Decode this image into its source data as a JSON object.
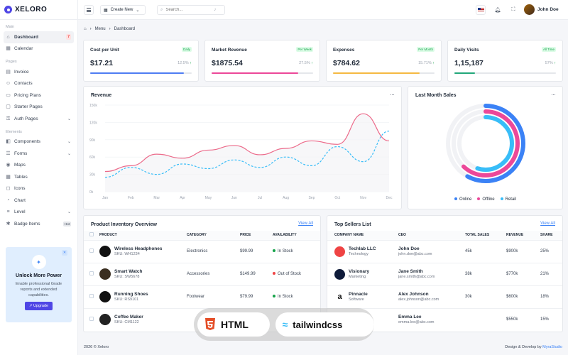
{
  "brand": {
    "name": "XELORO"
  },
  "sidebar": {
    "section_main": "Main",
    "section_pages": "Pages",
    "section_elements": "Elements",
    "main_items": [
      {
        "label": "Dashboard",
        "icon": "home-icon",
        "badge": "7"
      },
      {
        "label": "Calendar",
        "icon": "calendar-icon"
      }
    ],
    "page_items": [
      {
        "label": "Invoice",
        "icon": "invoice-icon"
      },
      {
        "label": "Contacts",
        "icon": "contacts-icon"
      },
      {
        "label": "Pricing Plans",
        "icon": "pricing-icon"
      },
      {
        "label": "Starter Pages",
        "icon": "page-icon"
      },
      {
        "label": "Auth Pages",
        "icon": "lock-icon"
      }
    ],
    "element_items": [
      {
        "label": "Components",
        "icon": "components-icon"
      },
      {
        "label": "Forms",
        "icon": "forms-icon"
      },
      {
        "label": "Maps",
        "icon": "map-icon"
      },
      {
        "label": "Tables",
        "icon": "table-icon"
      },
      {
        "label": "Icons",
        "icon": "icons-icon"
      },
      {
        "label": "Chart",
        "icon": "chart-icon"
      },
      {
        "label": "Level",
        "icon": "level-icon"
      },
      {
        "label": "Badge Items",
        "icon": "badge-icon",
        "badge": "Hot"
      }
    ],
    "promo": {
      "title": "Unlock More Power",
      "text": "Enable professional Grade reports and extended capabilities.",
      "button": "Upgrade"
    }
  },
  "topbar": {
    "create_label": "Create New",
    "search_placeholder": "Search...",
    "user_name": "John Doe"
  },
  "breadcrumb": {
    "items": [
      "Menu",
      "Dashboard"
    ]
  },
  "stats": [
    {
      "label": "Cost per Unit",
      "tag": "Daily",
      "value": "$17.21",
      "pct": "12.5%",
      "fill": 0.92,
      "color": "#4f7df3"
    },
    {
      "label": "Market Revenue",
      "tag": "Per Week",
      "value": "$1875.54",
      "pct": "27.5%",
      "fill": 0.85,
      "color": "#ec4899"
    },
    {
      "label": "Expenses",
      "tag": "Per Month",
      "value": "$784.62",
      "pct": "15.71%",
      "fill": 0.85,
      "color": "#f5b942"
    },
    {
      "label": "Daily Visits",
      "tag": "All Time",
      "value": "1,15,187",
      "pct": "57%",
      "fill": 0.2,
      "color": "#22a77a"
    }
  ],
  "revenue": {
    "title": "Revenue"
  },
  "last_month": {
    "title": "Last Month Sales",
    "legend": [
      "Online",
      "Offline",
      "Retail"
    ]
  },
  "colors": {
    "online": "#3b82f6",
    "offline": "#ec4899",
    "retail": "#38bdf8",
    "green": "#16a34a",
    "red": "#ef4444"
  },
  "chart_data": [
    {
      "type": "line",
      "title": "Revenue",
      "categories": [
        "Jan",
        "Feb",
        "Mar",
        "Apr",
        "May",
        "Jun",
        "Jul",
        "Aug",
        "Sep",
        "Oct",
        "Nov",
        "Dec"
      ],
      "y_ticks": [
        "150k",
        "120k",
        "90k",
        "60k",
        "30k",
        "0k"
      ],
      "ylim": [
        0,
        150
      ],
      "grid": true,
      "series": [
        {
          "values": [
            35,
            45,
            65,
            58,
            72,
            80,
            64,
            75,
            88,
            82,
            135,
            88
          ],
          "color": "#ec6a8a"
        },
        {
          "values": [
            25,
            42,
            30,
            48,
            40,
            55,
            42,
            60,
            45,
            78,
            52,
            105
          ],
          "color": "#38bdf8"
        }
      ]
    },
    {
      "type": "radialBar",
      "title": "Last Month Sales",
      "series": [
        {
          "name": "Online",
          "value": 0.58,
          "color": "#3b82f6"
        },
        {
          "name": "Offline",
          "value": 0.62,
          "color": "#ec4899"
        },
        {
          "name": "Retail",
          "value": 0.55,
          "color": "#38bdf8"
        }
      ]
    }
  ],
  "inventory": {
    "title": "Product Inventory Overview",
    "view_all": "View All",
    "columns": [
      "PRODUCT",
      "CATEGORY",
      "PRICE",
      "AVAILABILITY"
    ],
    "rows": [
      {
        "name": "Wireless Headphones",
        "sku": "SKU: WH1234",
        "category": "Electronics",
        "price": "$99.99",
        "status": "In Stock"
      },
      {
        "name": "Smart Watch",
        "sku": "SKU: SW5678",
        "category": "Accessories",
        "price": "$149.99",
        "status": "Out of Stock"
      },
      {
        "name": "Running Shoes",
        "sku": "SKU: RS9101",
        "category": "Footwear",
        "price": "$79.99",
        "status": "In Stock"
      },
      {
        "name": "Coffee Maker",
        "sku": "SKU: CM1122",
        "category": "",
        "price": "",
        "status": ""
      }
    ]
  },
  "sellers": {
    "title": "Top Sellers List",
    "view_all": "View All",
    "columns": [
      "COMPANY NAME",
      "CEO",
      "TOTAL SALES",
      "REVENUE",
      "SHARE"
    ],
    "rows": [
      {
        "company": "Techlab LLC",
        "industry": "Technology",
        "ceo": "John Doe",
        "email": "john.doe@abc.com",
        "sales": "45k",
        "revenue": "$900k",
        "share": "25%"
      },
      {
        "company": "Visionary",
        "industry": "Marketing",
        "ceo": "Jane Smith",
        "email": "jane.smith@abc.com",
        "sales": "38k",
        "revenue": "$770k",
        "share": "21%"
      },
      {
        "company": "Pinnacle",
        "industry": "Software",
        "ceo": "Alex Johnson",
        "email": "alex.johnson@abc.com",
        "sales": "30k",
        "revenue": "$600k",
        "share": "18%"
      },
      {
        "company": "",
        "industry": "",
        "ceo": "Emma Lee",
        "email": "emma.lee@abc.com",
        "sales": "",
        "revenue": "$550k",
        "share": "15%"
      }
    ]
  },
  "footer": {
    "copyright": "2026 © Xeloro",
    "credit": "Design & Develop by",
    "credit_link": "MyraStudio"
  },
  "overlay": {
    "html": "HTML",
    "tailwind": "tailwindcss"
  }
}
